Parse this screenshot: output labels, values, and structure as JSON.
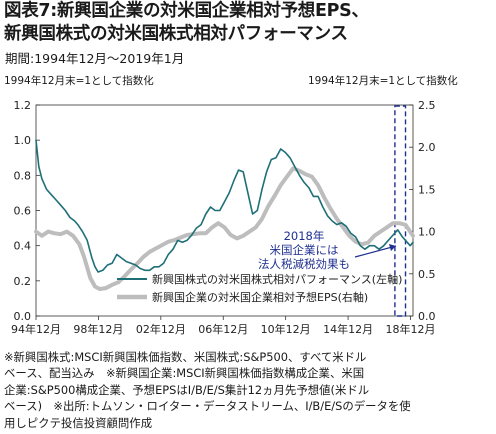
{
  "title_line1": "図表7:新興国企業の対米国企業相対予想EPS、",
  "title_line2": "新興国株式の対米国株式相対パフォーマンス",
  "period": "期間:1994年12月～2019年1月",
  "chart_data": {
    "type": "line",
    "left_axis": {
      "label": "1994年12月末=1として指数化",
      "range": [
        0.0,
        1.2
      ],
      "ticks": [
        "0.0",
        "0.2",
        "0.4",
        "0.6",
        "0.8",
        "1.0",
        "1.2"
      ]
    },
    "right_axis": {
      "label": "1994年12月末=1として指数化",
      "range": [
        0.0,
        2.5
      ],
      "ticks": [
        "0.0",
        "0.5",
        "1.0",
        "1.5",
        "2.0",
        "2.5"
      ]
    },
    "x_axis": {
      "range": [
        1994.92,
        2019.08
      ],
      "ticks": [
        {
          "x": 1994.92,
          "label": "94年12月"
        },
        {
          "x": 1998.92,
          "label": "98年12月"
        },
        {
          "x": 2002.92,
          "label": "02年12月"
        },
        {
          "x": 2006.92,
          "label": "06年12月"
        },
        {
          "x": 2010.92,
          "label": "10年12月"
        },
        {
          "x": 2014.92,
          "label": "14年12月"
        },
        {
          "x": 2018.92,
          "label": "18年12月"
        }
      ]
    },
    "grid": false,
    "legend_position": "bottom",
    "series": [
      {
        "name": "新興国株式の対米国株式相対パフォーマンス(左軸)",
        "axis": "left",
        "color": "#1e6f78",
        "x": [
          1994.92,
          1995.1,
          1995.3,
          1995.6,
          1995.9,
          1996.2,
          1996.5,
          1996.8,
          1997.1,
          1997.4,
          1997.6,
          1997.9,
          1998.2,
          1998.5,
          1998.7,
          1998.9,
          1999.2,
          1999.5,
          1999.8,
          2000.1,
          2000.4,
          2000.7,
          2001.0,
          2001.3,
          2001.6,
          2001.9,
          2002.2,
          2002.5,
          2002.8,
          2003.1,
          2003.4,
          2003.7,
          2004.0,
          2004.3,
          2004.6,
          2004.9,
          2005.2,
          2005.5,
          2005.8,
          2006.1,
          2006.4,
          2006.7,
          2007.0,
          2007.3,
          2007.6,
          2007.9,
          2008.2,
          2008.5,
          2008.8,
          2009.1,
          2009.4,
          2009.7,
          2010.0,
          2010.3,
          2010.6,
          2010.9,
          2011.2,
          2011.5,
          2011.8,
          2012.1,
          2012.4,
          2012.7,
          2013.0,
          2013.3,
          2013.6,
          2013.9,
          2014.2,
          2014.5,
          2014.8,
          2015.1,
          2015.4,
          2015.7,
          2016.0,
          2016.3,
          2016.6,
          2016.9,
          2017.2,
          2017.5,
          2017.8,
          2018.1,
          2018.4,
          2018.7,
          2018.9,
          2019.08
        ],
        "values": [
          1.0,
          0.85,
          0.78,
          0.72,
          0.69,
          0.66,
          0.63,
          0.6,
          0.56,
          0.54,
          0.52,
          0.48,
          0.43,
          0.33,
          0.28,
          0.25,
          0.26,
          0.29,
          0.3,
          0.35,
          0.33,
          0.31,
          0.3,
          0.29,
          0.27,
          0.26,
          0.26,
          0.28,
          0.28,
          0.3,
          0.35,
          0.38,
          0.43,
          0.42,
          0.43,
          0.46,
          0.5,
          0.52,
          0.58,
          0.62,
          0.6,
          0.6,
          0.65,
          0.7,
          0.77,
          0.83,
          0.82,
          0.7,
          0.58,
          0.6,
          0.72,
          0.82,
          0.89,
          0.9,
          0.95,
          0.93,
          0.9,
          0.85,
          0.8,
          0.76,
          0.73,
          0.68,
          0.68,
          0.62,
          0.57,
          0.54,
          0.52,
          0.53,
          0.51,
          0.47,
          0.45,
          0.4,
          0.38,
          0.4,
          0.4,
          0.38,
          0.4,
          0.43,
          0.46,
          0.49,
          0.45,
          0.42,
          0.4,
          0.42
        ]
      },
      {
        "name": "新興国企業の対米国企業相対予想EPS(右軸)",
        "axis": "right",
        "color": "#bdbdbd",
        "x": [
          1994.92,
          1995.3,
          1995.7,
          1996.1,
          1996.5,
          1996.9,
          1997.3,
          1997.7,
          1998.0,
          1998.4,
          1998.7,
          1999.0,
          1999.4,
          1999.8,
          2000.2,
          2000.6,
          2001.0,
          2001.4,
          2001.8,
          2002.2,
          2002.6,
          2003.0,
          2003.4,
          2003.8,
          2004.2,
          2004.6,
          2005.0,
          2005.4,
          2005.8,
          2006.2,
          2006.6,
          2007.0,
          2007.4,
          2007.8,
          2008.2,
          2008.6,
          2009.0,
          2009.4,
          2009.8,
          2010.2,
          2010.6,
          2011.0,
          2011.4,
          2011.8,
          2012.2,
          2012.6,
          2013.0,
          2013.4,
          2013.8,
          2014.2,
          2014.6,
          2015.0,
          2015.4,
          2015.8,
          2016.2,
          2016.6,
          2017.0,
          2017.4,
          2017.8,
          2018.2,
          2018.6,
          2018.9,
          2019.08
        ],
        "values": [
          1.0,
          0.95,
          1.0,
          0.98,
          0.97,
          1.0,
          0.95,
          0.85,
          0.7,
          0.45,
          0.35,
          0.32,
          0.33,
          0.37,
          0.4,
          0.47,
          0.55,
          0.62,
          0.7,
          0.76,
          0.8,
          0.84,
          0.88,
          0.9,
          0.93,
          0.96,
          0.97,
          0.98,
          0.98,
          1.05,
          1.1,
          1.05,
          0.96,
          0.92,
          0.95,
          1.0,
          1.05,
          1.15,
          1.3,
          1.42,
          1.55,
          1.65,
          1.75,
          1.72,
          1.68,
          1.65,
          1.55,
          1.4,
          1.27,
          1.15,
          1.05,
          0.95,
          0.88,
          0.85,
          0.87,
          0.95,
          1.0,
          1.05,
          1.1,
          1.1,
          1.08,
          1.0,
          0.95
        ]
      }
    ],
    "annotation": {
      "lines": [
        "2018年",
        "米国企業には",
        "法人税減税効果も"
      ],
      "box_from": 2017.92,
      "box_to": 2018.6
    }
  },
  "notes": [
    "※新興国株式:MSCI新興国株価指数、米国株式:S&P500、すべて米ドル",
    "ベース、配当込み　※新興国企業:MSCI新興国株価指数構成企業、米国",
    "企業:S&P500構成企業、予想EPSはI/B/E/S集計12ヵ月先予想値(米ドル",
    "ベース)　※出所:トムソン・ロイター・データストリーム、I/B/E/Sのデータを使",
    "用しピクテ投信投資顧問作成"
  ]
}
